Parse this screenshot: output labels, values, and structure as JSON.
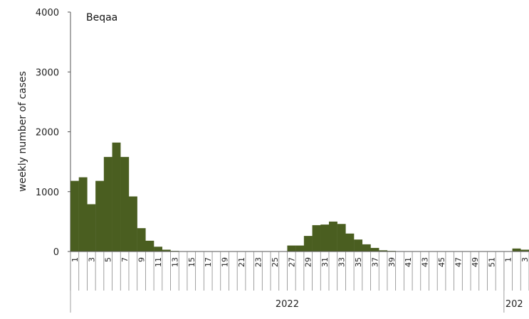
{
  "chart_data": {
    "type": "bar",
    "title": "Beqaa",
    "ylabel": "weekly number of cases",
    "ylim": [
      0,
      4000
    ],
    "yticks": [
      "0",
      "1000",
      "2000",
      "3000",
      "4000"
    ],
    "bar_color": "#4a5e20",
    "x_tick_labels": [
      "1",
      "3",
      "5",
      "7",
      "9",
      "11",
      "13",
      "15",
      "17",
      "19",
      "21",
      "23",
      "25",
      "27",
      "29",
      "31",
      "33",
      "35",
      "37",
      "39",
      "41",
      "43",
      "45",
      "47",
      "49",
      "51",
      "1",
      "3"
    ],
    "year_labels": [
      "2022",
      "202"
    ],
    "categories": [
      "1",
      "2",
      "3",
      "4",
      "5",
      "6",
      "7",
      "8",
      "9",
      "10",
      "11",
      "12",
      "13",
      "14",
      "15",
      "16",
      "17",
      "18",
      "19",
      "20",
      "21",
      "22",
      "23",
      "24",
      "25",
      "26",
      "27",
      "28",
      "29",
      "30",
      "31",
      "32",
      "33",
      "34",
      "35",
      "36",
      "37",
      "38",
      "39",
      "40",
      "41",
      "42",
      "43",
      "44",
      "45",
      "46",
      "47",
      "48",
      "49",
      "50",
      "51",
      "52",
      "1",
      "2",
      "3"
    ],
    "values": [
      1180,
      1240,
      790,
      1180,
      1580,
      1820,
      1580,
      920,
      390,
      180,
      80,
      30,
      10,
      5,
      5,
      5,
      5,
      5,
      5,
      5,
      5,
      5,
      5,
      5,
      5,
      5,
      100,
      100,
      260,
      440,
      450,
      500,
      460,
      300,
      200,
      120,
      60,
      20,
      10,
      5,
      5,
      5,
      5,
      5,
      5,
      5,
      5,
      5,
      5,
      5,
      5,
      5,
      5,
      50,
      30
    ]
  }
}
